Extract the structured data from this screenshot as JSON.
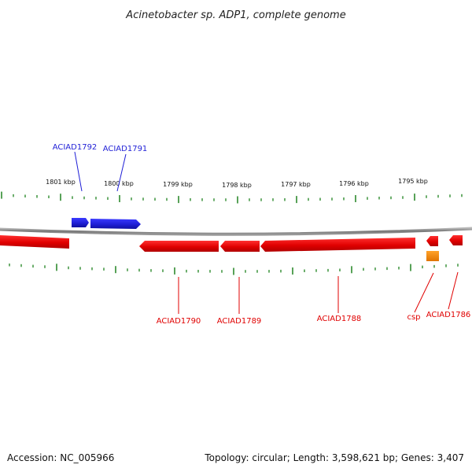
{
  "title": "Acinetobacter sp. ADP1, complete genome",
  "footer": {
    "accession": "Accession: NC_005966",
    "summary": "Topology: circular; Length: 3,598,621 bp; Genes: 3,407"
  },
  "scale_labels": [
    "1801 kbp",
    "1800 kbp",
    "1799 kbp",
    "1798 kbp",
    "1797 kbp",
    "1796 kbp",
    "1795 kbp"
  ],
  "colors": {
    "forward_gene": "#1f1fd6",
    "reverse_gene": "#e00000",
    "rna_gene": "#f58a00",
    "tick": "#2e8b2e",
    "backbone": "#888888"
  },
  "gene_labels": {
    "top": [
      "ACIAD1792",
      "ACIAD1791"
    ],
    "bottom": [
      "ACIAD1790",
      "ACIAD1789",
      "ACIAD1788",
      "csp",
      "ACIAD1786"
    ]
  }
}
